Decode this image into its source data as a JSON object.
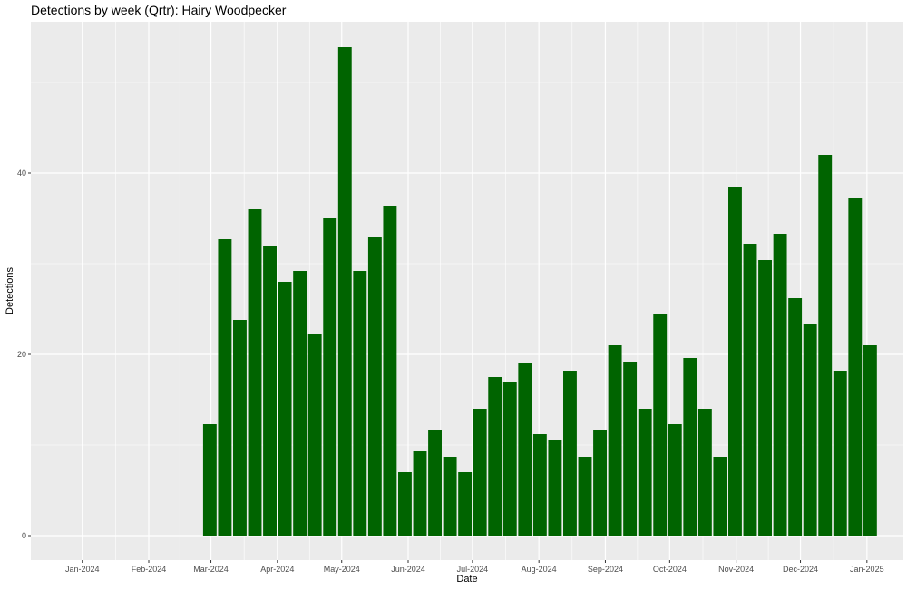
{
  "chart_data": {
    "type": "bar",
    "title": "Detections by week (Qrtr): Hairy Woodpecker",
    "xlabel": "Date",
    "ylabel": "Detections",
    "x_tick_labels": [
      "Jan-2024",
      "Feb-2024",
      "Mar-2024",
      "Apr-2024",
      "May-2024",
      "Jun-2024",
      "Jul-2024",
      "Aug-2024",
      "Sep-2024",
      "Oct-2024",
      "Nov-2024",
      "Dec-2024",
      "Jan-2025"
    ],
    "x_tick_dates": [
      "2024-01-01",
      "2024-02-01",
      "2024-03-01",
      "2024-04-01",
      "2024-05-01",
      "2024-06-01",
      "2024-07-01",
      "2024-08-01",
      "2024-09-01",
      "2024-10-01",
      "2024-11-01",
      "2024-12-01",
      "2025-01-01"
    ],
    "xlim": [
      "2023-12-08",
      "2025-01-18"
    ],
    "y_tick_labels": [
      "0",
      "20",
      "40"
    ],
    "y_ticks": [
      0,
      20,
      40
    ],
    "ylim": [
      -2.7,
      56.7
    ],
    "grid": true,
    "bar_color": "#006400",
    "panel_color": "#ebebeb",
    "categories": [
      "2024-02-26",
      "2024-03-04",
      "2024-03-11",
      "2024-03-18",
      "2024-03-25",
      "2024-04-01",
      "2024-04-08",
      "2024-04-15",
      "2024-04-22",
      "2024-04-29",
      "2024-05-06",
      "2024-05-13",
      "2024-05-20",
      "2024-05-27",
      "2024-06-03",
      "2024-06-10",
      "2024-06-17",
      "2024-06-24",
      "2024-07-01",
      "2024-07-08",
      "2024-07-15",
      "2024-07-22",
      "2024-07-29",
      "2024-08-05",
      "2024-08-12",
      "2024-08-19",
      "2024-08-26",
      "2024-09-02",
      "2024-09-09",
      "2024-09-16",
      "2024-09-23",
      "2024-09-30",
      "2024-10-07",
      "2024-10-14",
      "2024-10-21",
      "2024-10-28",
      "2024-11-04",
      "2024-11-11",
      "2024-11-18",
      "2024-11-25",
      "2024-12-02",
      "2024-12-09",
      "2024-12-16",
      "2024-12-23",
      "2024-12-30"
    ],
    "values": [
      12.3,
      32.7,
      23.8,
      36.0,
      32.0,
      28.0,
      29.2,
      22.2,
      35.0,
      53.9,
      29.2,
      33.0,
      36.4,
      7.0,
      9.3,
      11.7,
      8.7,
      7.0,
      14.0,
      17.5,
      17.0,
      19.0,
      11.2,
      10.5,
      18.2,
      8.7,
      11.7,
      21.0,
      19.2,
      14.0,
      24.5,
      12.3,
      19.6,
      14.0,
      8.7,
      38.5,
      32.2,
      30.4,
      33.3,
      26.2,
      23.3,
      42.0,
      18.2,
      37.3,
      21.0
    ]
  }
}
